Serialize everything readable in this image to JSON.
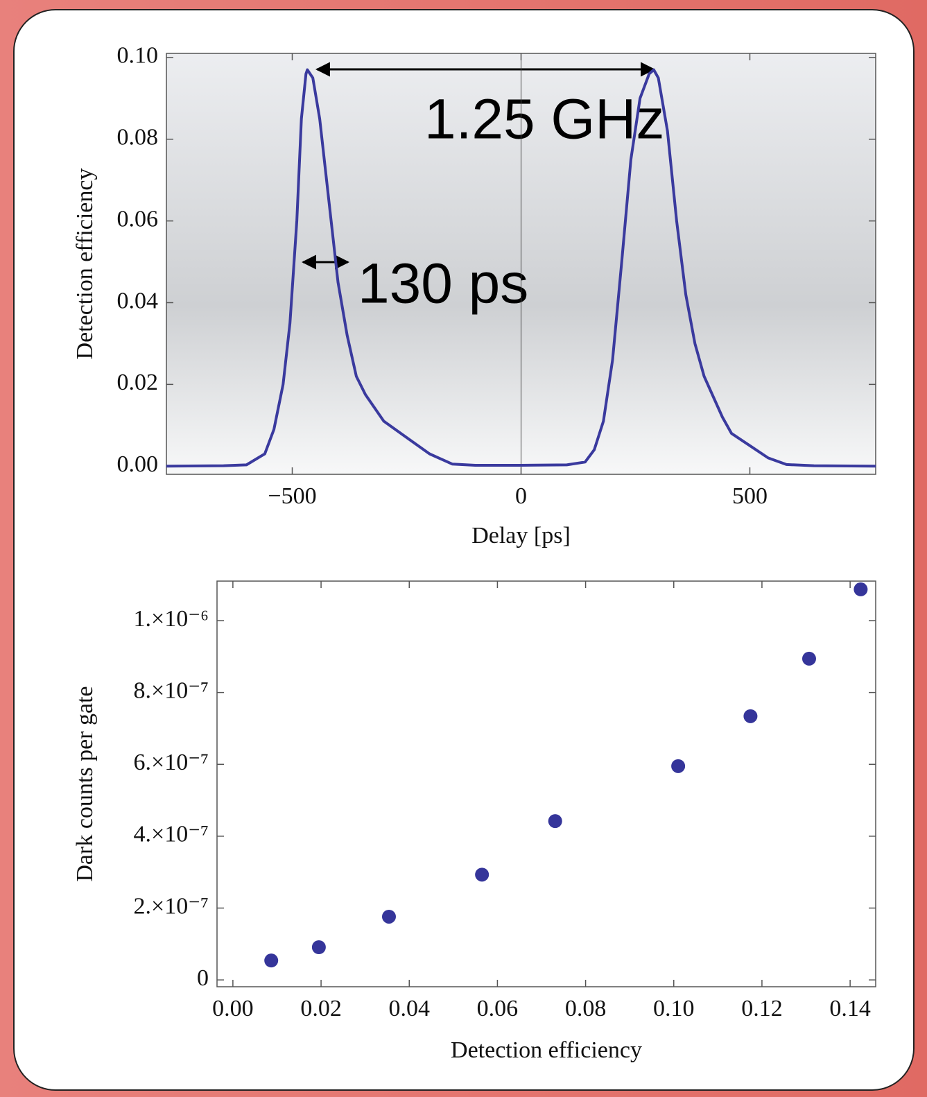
{
  "chart_data": [
    {
      "type": "line",
      "x_label": "Delay [ps]",
      "y_label": "Detection efficiency",
      "annotations": [
        "1.25 GHz",
        "130 ps"
      ],
      "color": "#3a3a9e",
      "x": [
        -775,
        -650,
        -600,
        -560,
        -540,
        -520,
        -505,
        -490,
        -480,
        -470,
        -467,
        -455,
        -440,
        -420,
        -400,
        -380,
        -360,
        -340,
        -300,
        -250,
        -200,
        -150,
        -100,
        0,
        100,
        140,
        160,
        180,
        200,
        220,
        240,
        260,
        280,
        290,
        300,
        320,
        340,
        360,
        380,
        400,
        440,
        460,
        500,
        540,
        580,
        640,
        775
      ],
      "values": [
        0,
        0.0001,
        0.0003,
        0.003,
        0.009,
        0.02,
        0.035,
        0.06,
        0.085,
        0.096,
        0.097,
        0.095,
        0.085,
        0.065,
        0.045,
        0.032,
        0.022,
        0.0175,
        0.011,
        0.007,
        0.003,
        0.0005,
        0.0002,
        0.0002,
        0.0003,
        0.001,
        0.004,
        0.011,
        0.026,
        0.05,
        0.075,
        0.09,
        0.096,
        0.097,
        0.095,
        0.082,
        0.06,
        0.042,
        0.03,
        0.022,
        0.012,
        0.008,
        0.005,
        0.002,
        0.0004,
        0.0001,
        0
      ],
      "xlim": [
        -775,
        775
      ],
      "ylim": [
        -0.002,
        0.101
      ],
      "xticks": [
        {
          "value": -500,
          "label": "−500"
        },
        0,
        500
      ],
      "yticks": [
        {
          "value": 0,
          "label": "0.00"
        },
        {
          "value": 0.02,
          "label": "0.02"
        },
        {
          "value": 0.04,
          "label": "0.04"
        },
        {
          "value": 0.06,
          "label": "0.06"
        },
        {
          "value": 0.08,
          "label": "0.08"
        },
        {
          "value": 0.1,
          "label": "0.10"
        }
      ],
      "grid": false
    },
    {
      "type": "scatter",
      "x_label": "Detection  efficiency",
      "y_label": "Dark  counts  per  gate",
      "color": "#35359a",
      "x": [
        0.0087,
        0.0195,
        0.0354,
        0.0565,
        0.0731,
        0.101,
        0.1174,
        0.1307,
        0.1424
      ],
      "values": [
        5.4e-08,
        9.1e-08,
        1.76e-07,
        2.93e-07,
        4.42e-07,
        5.95e-07,
        7.34e-07,
        8.94e-07,
        1.087e-06
      ],
      "xlim": [
        -0.0036,
        0.1458
      ],
      "ylim": [
        -1.9e-08,
        1.11e-06
      ],
      "xticks": [
        {
          "value": 0,
          "label": "0.00"
        },
        {
          "value": 0.02,
          "label": "0.02"
        },
        {
          "value": 0.04,
          "label": "0.04"
        },
        {
          "value": 0.06,
          "label": "0.06"
        },
        {
          "value": 0.08,
          "label": "0.08"
        },
        {
          "value": 0.1,
          "label": "0.10"
        },
        {
          "value": 0.12,
          "label": "0.12"
        },
        {
          "value": 0.14,
          "label": "0.14"
        }
      ],
      "yticks": [
        0,
        {
          "value": 2e-07,
          "label": "2.×10⁻⁷"
        },
        {
          "value": 4e-07,
          "label": "4.×10⁻⁷"
        },
        {
          "value": 6e-07,
          "label": "6.×10⁻⁷"
        },
        {
          "value": 8e-07,
          "label": "8.×10⁻⁷"
        },
        {
          "value": 1e-06,
          "label": "1.×10⁻⁶"
        }
      ],
      "grid": false
    }
  ]
}
